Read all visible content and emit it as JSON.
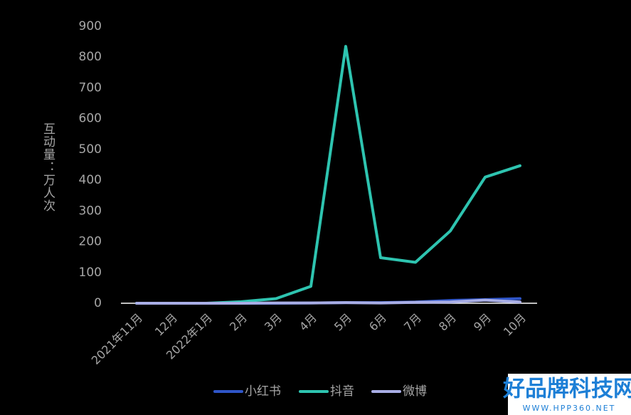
{
  "chart_data": {
    "type": "line",
    "y_label": "互动量：万人次",
    "categories": [
      "2021年11月",
      "12月",
      "2022年1月",
      "2月",
      "3月",
      "4月",
      "5月",
      "6月",
      "7月",
      "8月",
      "9月",
      "10月"
    ],
    "series": [
      {
        "name": "小红书",
        "color": "#2f55c8",
        "values": [
          0,
          0,
          0,
          0,
          0,
          1,
          2,
          2,
          4,
          9,
          12,
          15
        ]
      },
      {
        "name": "抖音",
        "color": "#2ec4b0",
        "values": [
          0,
          0,
          0,
          5,
          15,
          55,
          835,
          148,
          133,
          235,
          410,
          447
        ]
      },
      {
        "name": "微博",
        "color": "#a9aee6",
        "values": [
          0,
          0,
          0,
          0,
          1,
          1,
          2,
          1,
          3,
          4,
          10,
          4
        ]
      }
    ],
    "ylim": [
      0,
      900
    ],
    "yticks": [
      0,
      100,
      200,
      300,
      400,
      500,
      600,
      700,
      800,
      900
    ],
    "legend": "bottom"
  },
  "watermark": {
    "title": "好品牌科技网",
    "url": "WWW.HPP360.NET"
  }
}
